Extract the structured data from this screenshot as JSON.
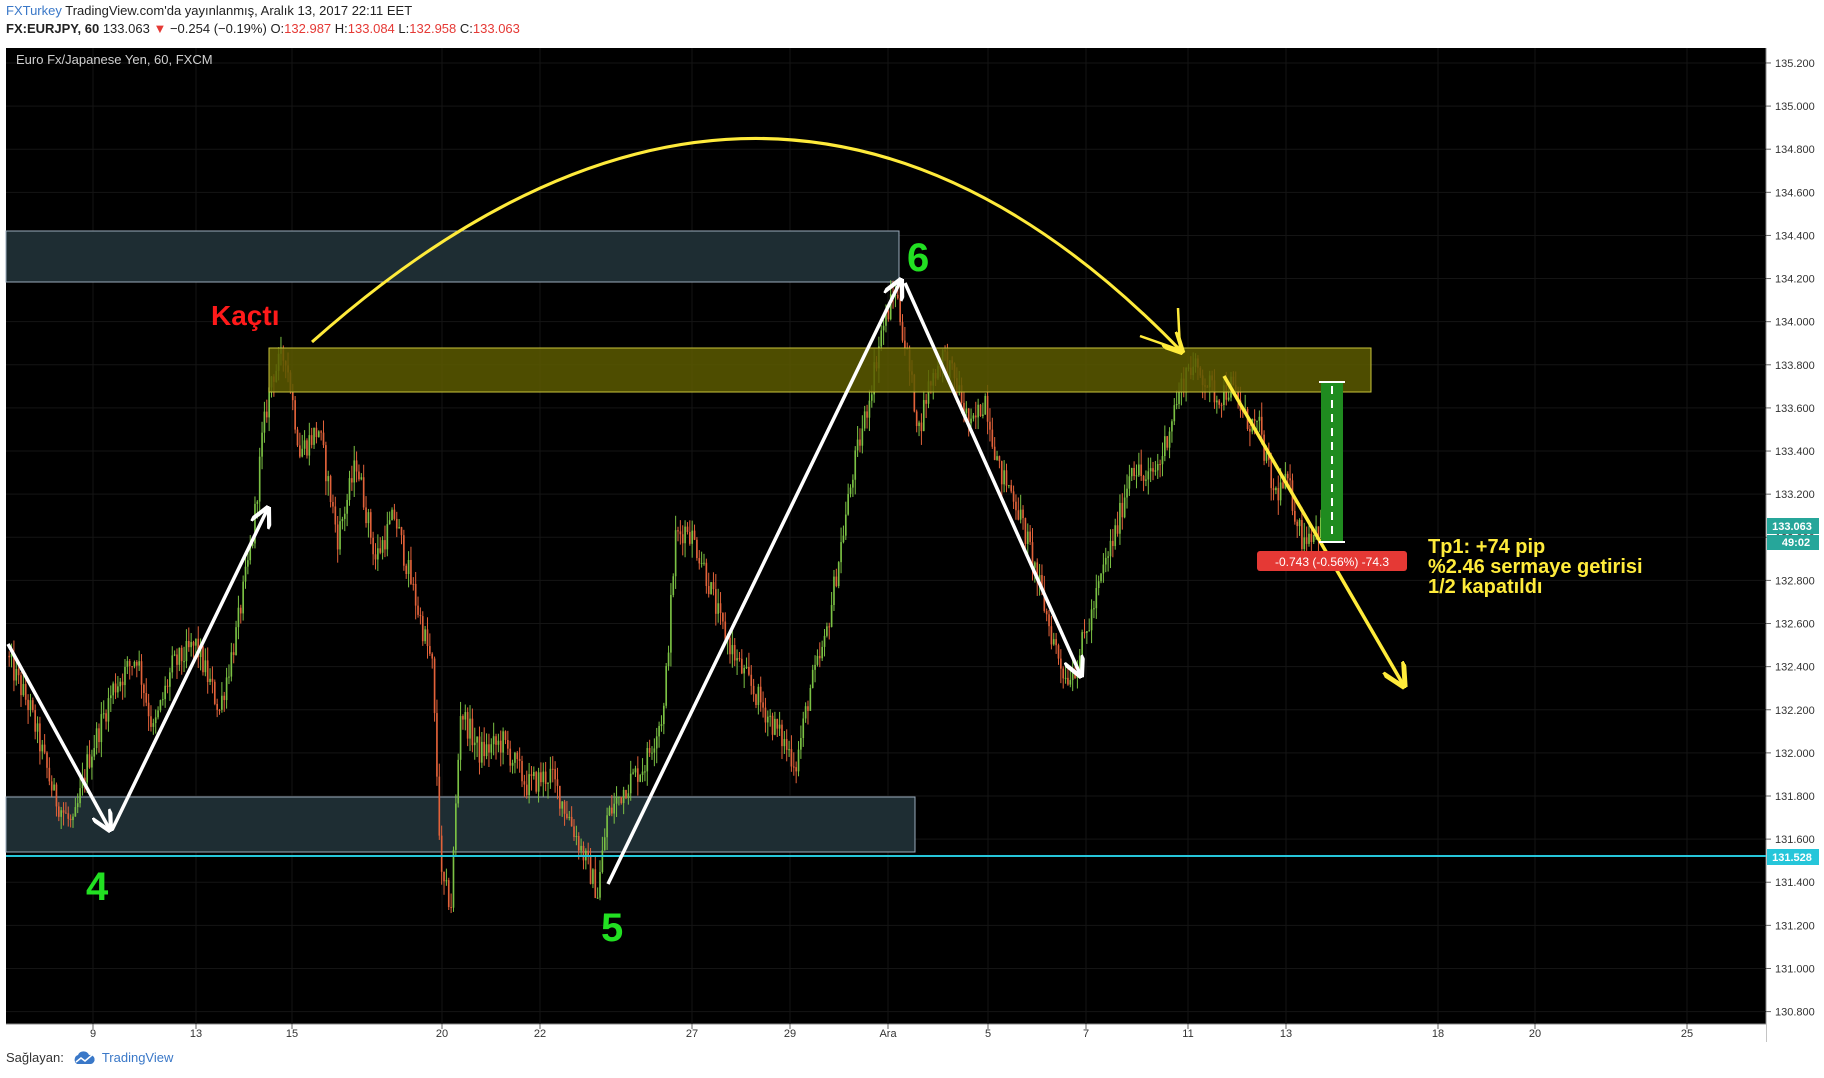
{
  "header": {
    "brand": "FXTurkey",
    "published": " TradingView.com'da yayınlanmış, Aralık 13, 2017 22:11 EET",
    "symbol": "FX:EURJPY, 60",
    "last": "133.063",
    "change": "−0.254 (−0.19%)",
    "open_label": "O:",
    "open": "132.987",
    "high_label": "H:",
    "high": "133.084",
    "low_label": "L:",
    "low": "132.958",
    "close_label": "C:",
    "close": "133.063"
  },
  "footer": {
    "label": "Sağlayan:",
    "provider": "TradingView"
  },
  "chart_data": {
    "type": "candlestick",
    "title": "Euro Fx/Japanese Yen, 60, FXCM",
    "ylim": [
      130.7,
      135.3
    ],
    "y_ticks": [
      "130.800",
      "131.000",
      "131.200",
      "131.400",
      "131.600",
      "131.800",
      "132.000",
      "132.200",
      "132.400",
      "132.600",
      "132.800",
      "133.000",
      "133.200",
      "133.400",
      "133.600",
      "133.800",
      "134.000",
      "134.200",
      "134.400",
      "134.600",
      "134.800",
      "135.000",
      "135.200"
    ],
    "x_ticks": [
      "9",
      "13",
      "15",
      "20",
      "22",
      "27",
      "29",
      "Ara",
      "5",
      "7",
      "11",
      "13",
      "18",
      "20",
      "25"
    ],
    "close_price": "133.063",
    "countdown": "49:02",
    "support_line": "131.528",
    "path": [
      [
        0,
        132.45
      ],
      [
        10,
        132.2
      ],
      [
        20,
        131.8
      ],
      [
        28,
        131.65
      ],
      [
        34,
        131.95
      ],
      [
        45,
        132.3
      ],
      [
        55,
        132.45
      ],
      [
        62,
        132.1
      ],
      [
        70,
        132.4
      ],
      [
        80,
        132.5
      ],
      [
        90,
        132.2
      ],
      [
        97,
        132.55
      ],
      [
        104,
        133.0
      ],
      [
        108,
        133.45
      ],
      [
        112,
        133.75
      ],
      [
        118,
        133.85
      ],
      [
        124,
        133.4
      ],
      [
        132,
        133.5
      ],
      [
        140,
        133.0
      ],
      [
        148,
        133.35
      ],
      [
        156,
        132.9
      ],
      [
        164,
        133.1
      ],
      [
        172,
        132.75
      ],
      [
        180,
        132.4
      ],
      [
        184,
        131.4
      ],
      [
        188,
        131.3
      ],
      [
        192,
        132.2
      ],
      [
        200,
        132.0
      ],
      [
        210,
        132.05
      ],
      [
        220,
        131.85
      ],
      [
        230,
        131.9
      ],
      [
        238,
        131.7
      ],
      [
        245,
        131.5
      ],
      [
        250,
        131.35
      ],
      [
        254,
        131.7
      ],
      [
        262,
        131.85
      ],
      [
        270,
        131.95
      ],
      [
        278,
        132.2
      ],
      [
        283,
        133.0
      ],
      [
        288,
        133.05
      ],
      [
        294,
        132.9
      ],
      [
        302,
        132.6
      ],
      [
        310,
        132.4
      ],
      [
        318,
        132.25
      ],
      [
        326,
        132.1
      ],
      [
        334,
        131.95
      ],
      [
        340,
        132.3
      ],
      [
        346,
        132.5
      ],
      [
        352,
        132.9
      ],
      [
        358,
        133.3
      ],
      [
        364,
        133.6
      ],
      [
        370,
        133.95
      ],
      [
        376,
        134.15
      ],
      [
        380,
        133.9
      ],
      [
        386,
        133.5
      ],
      [
        390,
        133.7
      ],
      [
        396,
        133.85
      ],
      [
        402,
        133.7
      ],
      [
        408,
        133.5
      ],
      [
        414,
        133.65
      ],
      [
        420,
        133.3
      ],
      [
        426,
        133.2
      ],
      [
        434,
        132.9
      ],
      [
        442,
        132.55
      ],
      [
        448,
        132.35
      ],
      [
        452,
        132.4
      ],
      [
        458,
        132.6
      ],
      [
        464,
        132.85
      ],
      [
        470,
        133.05
      ],
      [
        476,
        133.35
      ],
      [
        482,
        133.25
      ],
      [
        488,
        133.35
      ],
      [
        494,
        133.6
      ],
      [
        500,
        133.8
      ],
      [
        506,
        133.75
      ],
      [
        512,
        133.65
      ],
      [
        518,
        133.7
      ],
      [
        524,
        133.55
      ],
      [
        530,
        133.5
      ],
      [
        536,
        133.2
      ],
      [
        542,
        133.25
      ],
      [
        548,
        133.0
      ],
      [
        556,
        133.05
      ]
    ],
    "annotations": {
      "wave_4": "4",
      "wave_5": "5",
      "wave_6": "6",
      "escaped": "Kaçtı",
      "position_change": "-0.743 (-0.56%) -74.3",
      "tp_line1": "Tp1: +74 pip",
      "tp_line2": "%2.46 sermaye getirisi",
      "tp_line3": "1/2 kapatıldı"
    },
    "zones": [
      {
        "role": "resistance-box",
        "from": 134.2,
        "to": 134.45
      },
      {
        "role": "supply-zone",
        "from": 133.68,
        "to": 133.9
      },
      {
        "role": "support-box",
        "from": 131.55,
        "to": 131.8
      }
    ],
    "colors": {
      "background": "#000000",
      "up": "#7bc144",
      "down": "#e2623a",
      "arrow_white": "#ffffff",
      "arrow_yellow": "#ffeb3b",
      "wave_labels": "#22e022",
      "escaped_label": "#ff1a1a",
      "support_line": "#26c6da",
      "zone_yellow": "#5c5a00",
      "zone_teal": "#1e2d33",
      "target_bar": "#1f8b1f",
      "price_badge": "#26a69a",
      "loss_badge": "#e53935"
    }
  }
}
